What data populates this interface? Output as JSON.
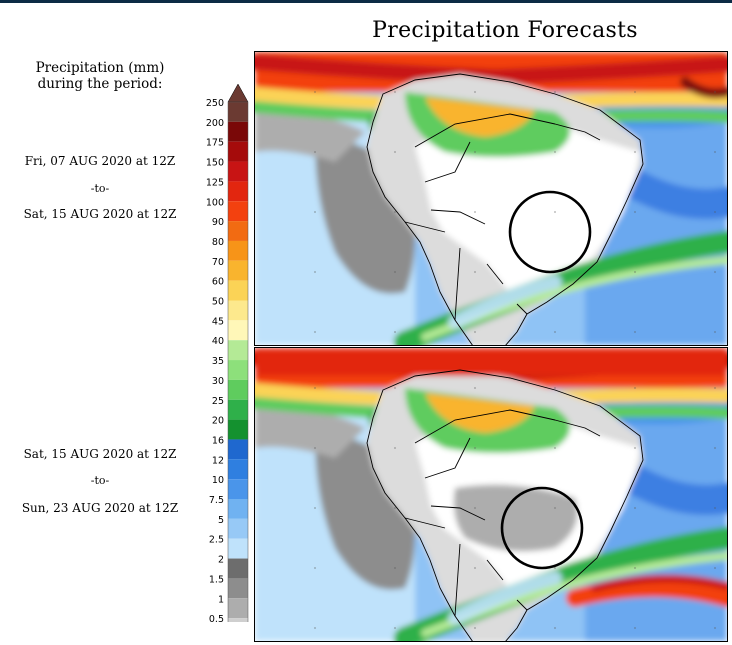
{
  "title": "Precipitation Forecasts",
  "legend": {
    "header_line1": "Precipitation (mm)",
    "header_line2": "during the period:",
    "levels": [
      "250",
      "200",
      "175",
      "150",
      "125",
      "100",
      "90",
      "80",
      "70",
      "60",
      "50",
      "45",
      "40",
      "35",
      "30",
      "25",
      "20",
      "16",
      "12",
      "10",
      "7.5",
      "5",
      "2.5",
      "2",
      "1.5",
      "1",
      "0.5"
    ],
    "colors": [
      "#6b3a32",
      "#7a0808",
      "#a50b0b",
      "#c81414",
      "#e2260f",
      "#f3410f",
      "#f26b12",
      "#f79418",
      "#f9b42e",
      "#fbd356",
      "#fde98d",
      "#fff7b8",
      "#b4ea96",
      "#8de07b",
      "#5fcc5e",
      "#2fb04a",
      "#14912f",
      "#1f68cf",
      "#2f7fe0",
      "#4a95ea",
      "#70b2f1",
      "#97c9f6",
      "#bfe2fb",
      "#6d6d6d",
      "#8d8d8d",
      "#adadad",
      "#cfcfcf"
    ]
  },
  "periods": [
    {
      "start": "Fri, 07 AUG 2020 at 12Z",
      "sep": "-to-",
      "end": "Sat, 15 AUG 2020 at 12Z"
    },
    {
      "start": "Sat, 15 AUG 2020 at 12Z",
      "sep": "-to-",
      "end": "Sun, 23 AUG 2020 at 12Z"
    }
  ],
  "maps": [
    {
      "region": "south-america",
      "highlight": "circle-south-brazil"
    },
    {
      "region": "south-america",
      "highlight": "circle-south-brazil"
    }
  ]
}
